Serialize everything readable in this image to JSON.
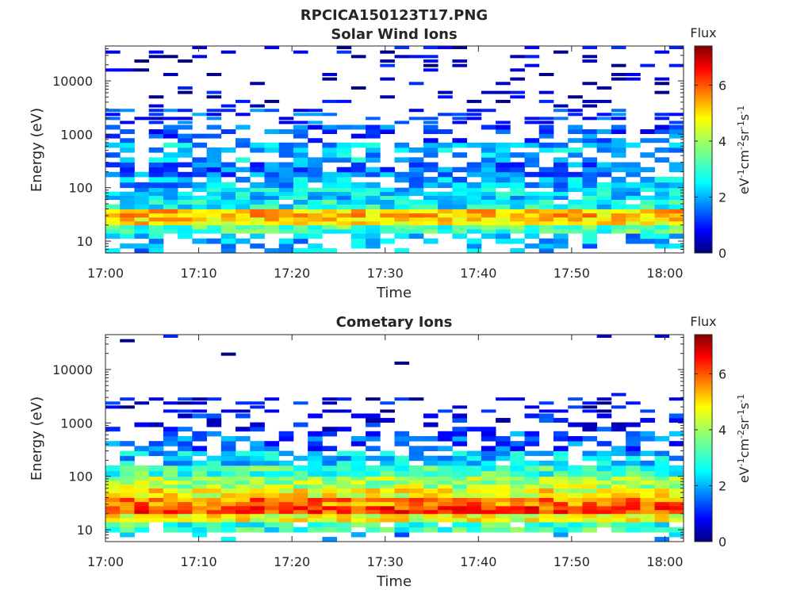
{
  "figure_title": "RPCICA150123T17.PNG",
  "chart_data": [
    {
      "type": "heatmap",
      "title": "Solar Wind Ions",
      "xlabel": "Time",
      "ylabel": "Energy (eV)",
      "x_range": [
        "17:00",
        "18:02"
      ],
      "x_ticks": [
        "17:00",
        "17:10",
        "17:20",
        "17:30",
        "17:40",
        "17:50",
        "18:00"
      ],
      "y_scale": "log",
      "y_range": [
        6,
        45000
      ],
      "y_ticks": [
        "10",
        "100",
        "1000",
        "10000"
      ],
      "colorbar": {
        "label": "Flux",
        "unit": "eV-1cm-2sr-1s-1",
        "range": [
          0,
          7.4
        ],
        "ticks": [
          "0",
          "2",
          "4",
          "6"
        ],
        "colormap": "jet"
      },
      "bands": [
        {
          "e_lo": 6,
          "e_hi": 9,
          "level": 2.2,
          "coverage": 0.3
        },
        {
          "e_lo": 9,
          "e_hi": 14,
          "level": 2.3,
          "coverage": 0.55
        },
        {
          "e_lo": 14,
          "e_hi": 20,
          "level": 3.3,
          "coverage": 1.0
        },
        {
          "e_lo": 20,
          "e_hi": 28,
          "level": 4.8,
          "coverage": 1.0
        },
        {
          "e_lo": 28,
          "e_hi": 40,
          "level": 5.1,
          "coverage": 1.0
        },
        {
          "e_lo": 40,
          "e_hi": 60,
          "level": 2.8,
          "coverage": 0.95
        },
        {
          "e_lo": 60,
          "e_hi": 100,
          "level": 2.5,
          "coverage": 0.9
        },
        {
          "e_lo": 100,
          "e_hi": 160,
          "level": 2.2,
          "coverage": 0.85
        },
        {
          "e_lo": 160,
          "e_hi": 300,
          "level": 1.8,
          "coverage": 0.75
        },
        {
          "e_lo": 300,
          "e_hi": 700,
          "level": 2.3,
          "coverage": 0.6
        },
        {
          "e_lo": 700,
          "e_hi": 1500,
          "level": 1.5,
          "coverage": 0.45
        },
        {
          "e_lo": 1500,
          "e_hi": 3000,
          "level": 1.4,
          "coverage": 0.4
        },
        {
          "e_lo": 3000,
          "e_hi": 45000,
          "level": 0.5,
          "coverage": 0.18
        }
      ]
    },
    {
      "type": "heatmap",
      "title": "Cometary Ions",
      "xlabel": "Time",
      "ylabel": "Energy (eV)",
      "x_range": [
        "17:00",
        "18:02"
      ],
      "x_ticks": [
        "17:00",
        "17:10",
        "17:20",
        "17:30",
        "17:40",
        "17:50",
        "18:00"
      ],
      "y_scale": "log",
      "y_range": [
        6,
        45000
      ],
      "y_ticks": [
        "10",
        "100",
        "1000",
        "10000"
      ],
      "colorbar": {
        "label": "Flux",
        "unit": "eV-1cm-2sr-1s-1",
        "range": [
          0,
          7.4
        ],
        "ticks": [
          "0",
          "2",
          "4",
          "6"
        ],
        "colormap": "jet"
      },
      "bands": [
        {
          "e_lo": 6,
          "e_hi": 9,
          "level": 2.2,
          "coverage": 0.15
        },
        {
          "e_lo": 9,
          "e_hi": 14,
          "level": 3.1,
          "coverage": 0.85
        },
        {
          "e_lo": 14,
          "e_hi": 20,
          "level": 4.5,
          "coverage": 1.0
        },
        {
          "e_lo": 20,
          "e_hi": 28,
          "level": 6.0,
          "coverage": 1.0
        },
        {
          "e_lo": 28,
          "e_hi": 40,
          "level": 5.6,
          "coverage": 1.0
        },
        {
          "e_lo": 40,
          "e_hi": 60,
          "level": 4.6,
          "coverage": 1.0
        },
        {
          "e_lo": 60,
          "e_hi": 100,
          "level": 4.0,
          "coverage": 1.0
        },
        {
          "e_lo": 100,
          "e_hi": 160,
          "level": 3.2,
          "coverage": 1.0
        },
        {
          "e_lo": 160,
          "e_hi": 300,
          "level": 2.4,
          "coverage": 0.8
        },
        {
          "e_lo": 300,
          "e_hi": 700,
          "level": 1.6,
          "coverage": 0.5
        },
        {
          "e_lo": 700,
          "e_hi": 1500,
          "level": 1.0,
          "coverage": 0.3
        },
        {
          "e_lo": 1500,
          "e_hi": 3000,
          "level": 0.7,
          "coverage": 0.35
        },
        {
          "e_lo": 3000,
          "e_hi": 45000,
          "level": 0.4,
          "coverage": 0.01
        }
      ]
    }
  ]
}
